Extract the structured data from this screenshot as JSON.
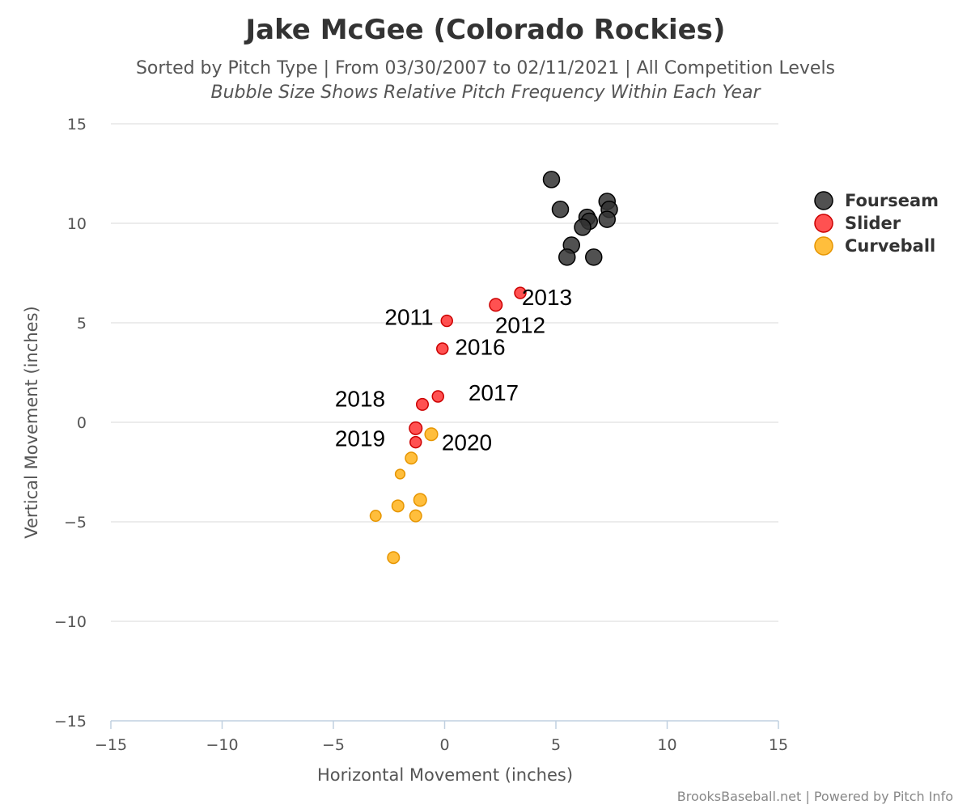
{
  "chart_data": {
    "type": "scatter",
    "title": "Jake McGee (Colorado Rockies)",
    "subtitle": "Sorted by Pitch Type | From 03/30/2007 to 02/11/2021 | All Competition Levels",
    "subtitle2": "Bubble Size Shows Relative Pitch Frequency Within Each Year",
    "xlabel": "Horizontal Movement (inches)",
    "ylabel": "Vertical Movement (inches)",
    "xlim": [
      -15,
      15
    ],
    "ylim": [
      -15,
      15
    ],
    "xticks": [
      "−15",
      "−10",
      "−5",
      "0",
      "5",
      "10",
      "15"
    ],
    "yticks": [
      "15",
      "10",
      "5",
      "0",
      "−5",
      "−10",
      "−15"
    ],
    "grid": true,
    "legend_position": "right",
    "series": [
      {
        "name": "Fourseam",
        "color": "#333333",
        "points": [
          {
            "x": 4.8,
            "y": 12.2,
            "size": 1.0
          },
          {
            "x": 5.2,
            "y": 10.7,
            "size": 1.0
          },
          {
            "x": 7.3,
            "y": 11.1,
            "size": 1.0
          },
          {
            "x": 7.4,
            "y": 10.7,
            "size": 1.0
          },
          {
            "x": 7.3,
            "y": 10.2,
            "size": 1.0
          },
          {
            "x": 6.4,
            "y": 10.3,
            "size": 1.0
          },
          {
            "x": 6.5,
            "y": 10.1,
            "size": 1.0
          },
          {
            "x": 6.2,
            "y": 9.8,
            "size": 1.0
          },
          {
            "x": 5.7,
            "y": 8.9,
            "size": 1.0
          },
          {
            "x": 5.5,
            "y": 8.3,
            "size": 1.0
          },
          {
            "x": 6.7,
            "y": 8.3,
            "size": 1.0
          }
        ]
      },
      {
        "name": "Slider",
        "color": "#ff3333",
        "points": [
          {
            "x": 3.4,
            "y": 6.5,
            "size": 0.45
          },
          {
            "x": 2.3,
            "y": 5.9,
            "size": 0.6
          },
          {
            "x": 0.1,
            "y": 5.1,
            "size": 0.45
          },
          {
            "x": -0.1,
            "y": 3.7,
            "size": 0.45
          },
          {
            "x": -0.3,
            "y": 1.3,
            "size": 0.45
          },
          {
            "x": -1.0,
            "y": 0.9,
            "size": 0.5
          },
          {
            "x": -1.3,
            "y": -0.3,
            "size": 0.6
          },
          {
            "x": -1.3,
            "y": -1.0,
            "size": 0.45
          }
        ]
      },
      {
        "name": "Curveball",
        "color": "#ffb31a",
        "points": [
          {
            "x": -0.6,
            "y": -0.6,
            "size": 0.6
          },
          {
            "x": -1.5,
            "y": -1.8,
            "size": 0.5
          },
          {
            "x": -2.0,
            "y": -2.6,
            "size": 0.25
          },
          {
            "x": -1.1,
            "y": -3.9,
            "size": 0.6
          },
          {
            "x": -2.1,
            "y": -4.2,
            "size": 0.5
          },
          {
            "x": -3.1,
            "y": -4.7,
            "size": 0.4
          },
          {
            "x": -1.3,
            "y": -4.7,
            "size": 0.5
          },
          {
            "x": -2.3,
            "y": -6.8,
            "size": 0.5
          }
        ]
      }
    ],
    "annotations": [
      {
        "text": "2013",
        "x": 4.6,
        "y": 5.9
      },
      {
        "text": "2011",
        "x": -1.6,
        "y": 4.9
      },
      {
        "text": "2012",
        "x": 3.4,
        "y": 4.5
      },
      {
        "text": "2016",
        "x": 1.6,
        "y": 3.4
      },
      {
        "text": "2017",
        "x": 2.2,
        "y": 1.1
      },
      {
        "text": "2018",
        "x": -3.8,
        "y": 0.8
      },
      {
        "text": "2019",
        "x": -3.8,
        "y": -1.2
      },
      {
        "text": "2020",
        "x": 1.0,
        "y": -1.4
      }
    ],
    "credits": "BrooksBaseball.net | Powered by Pitch Info"
  }
}
